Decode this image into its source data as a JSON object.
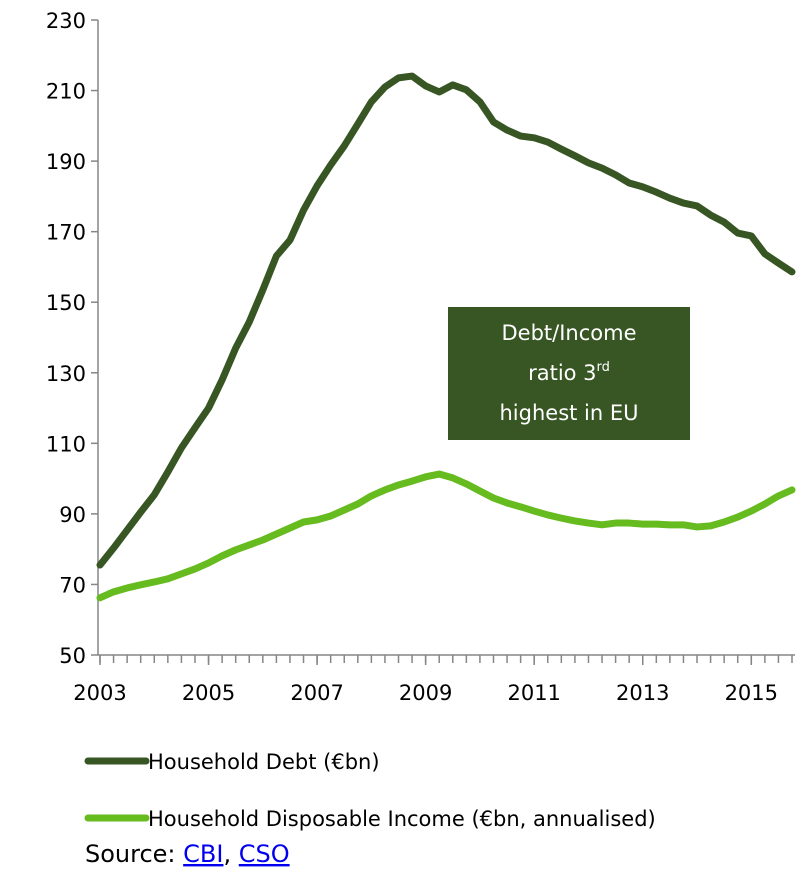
{
  "chart_data": {
    "type": "line",
    "x": [
      2003,
      2003.25,
      2003.5,
      2003.75,
      2004,
      2004.25,
      2004.5,
      2004.75,
      2005,
      2005.25,
      2005.5,
      2005.75,
      2006,
      2006.25,
      2006.5,
      2006.75,
      2007,
      2007.25,
      2007.5,
      2007.75,
      2008,
      2008.25,
      2008.5,
      2008.75,
      2009,
      2009.25,
      2009.5,
      2009.75,
      2010,
      2010.25,
      2010.5,
      2010.75,
      2011,
      2011.25,
      2011.5,
      2011.75,
      2012,
      2012.25,
      2012.5,
      2012.75,
      2013,
      2013.25,
      2013.5,
      2013.75,
      2014,
      2014.25,
      2014.5,
      2014.75,
      2015,
      2015.25,
      2015.5,
      2015.75
    ],
    "series": [
      {
        "name": "Household Debt (€bn)",
        "color": "#375623",
        "values": [
          75.5,
          80.3,
          85.4,
          90.5,
          95.4,
          101.9,
          108.7,
          114.4,
          120,
          128,
          137,
          144.4,
          153.5,
          163.1,
          167.6,
          176.1,
          183,
          188.9,
          194.3,
          200.5,
          206.8,
          211,
          213.6,
          214.1,
          211.3,
          209.6,
          211.6,
          210.2,
          206.8,
          201.1,
          198.8,
          197.1,
          196.6,
          195.4,
          193.4,
          191.5,
          189.5,
          188,
          186.1,
          183.8,
          182.7,
          181.2,
          179.5,
          178.1,
          177.3,
          174.7,
          172.7,
          169.6,
          168.8,
          163.7,
          161.1,
          158.6
        ]
      },
      {
        "name": "Household Disposable Income (€bn, annualised)",
        "color": "#66bb1f",
        "values": [
          66.2,
          67.9,
          69,
          69.9,
          70.7,
          71.6,
          73,
          74.4,
          76.1,
          78.1,
          79.8,
          81.2,
          82.6,
          84.3,
          86,
          87.7,
          88.3,
          89.4,
          91.1,
          92.8,
          95.1,
          96.8,
          98.2,
          99.3,
          100.5,
          101.3,
          100.2,
          98.5,
          96.5,
          94.5,
          93.1,
          92,
          90.8,
          89.7,
          88.8,
          88,
          87.4,
          86.9,
          87.4,
          87.4,
          87.1,
          87.1,
          86.9,
          86.9,
          86.3,
          86.6,
          87.7,
          89.1,
          90.8,
          92.8,
          95.1,
          96.8
        ]
      }
    ],
    "xlim": [
      2003,
      2015.75
    ],
    "xticks": [
      2003,
      2005,
      2007,
      2009,
      2011,
      2013,
      2015
    ],
    "ylim": [
      50,
      230
    ],
    "yticks": [
      50,
      70,
      90,
      110,
      130,
      150,
      170,
      190,
      210,
      230
    ],
    "grid": false,
    "annotation": {
      "line1": "Debt/Income",
      "line2": "ratio 3",
      "line2_sup": "rd",
      "line3": "highest in EU",
      "color": "#375623"
    },
    "source": {
      "label": "Source: ",
      "links": [
        "CBI",
        "CSO"
      ],
      "separator": ", "
    }
  }
}
